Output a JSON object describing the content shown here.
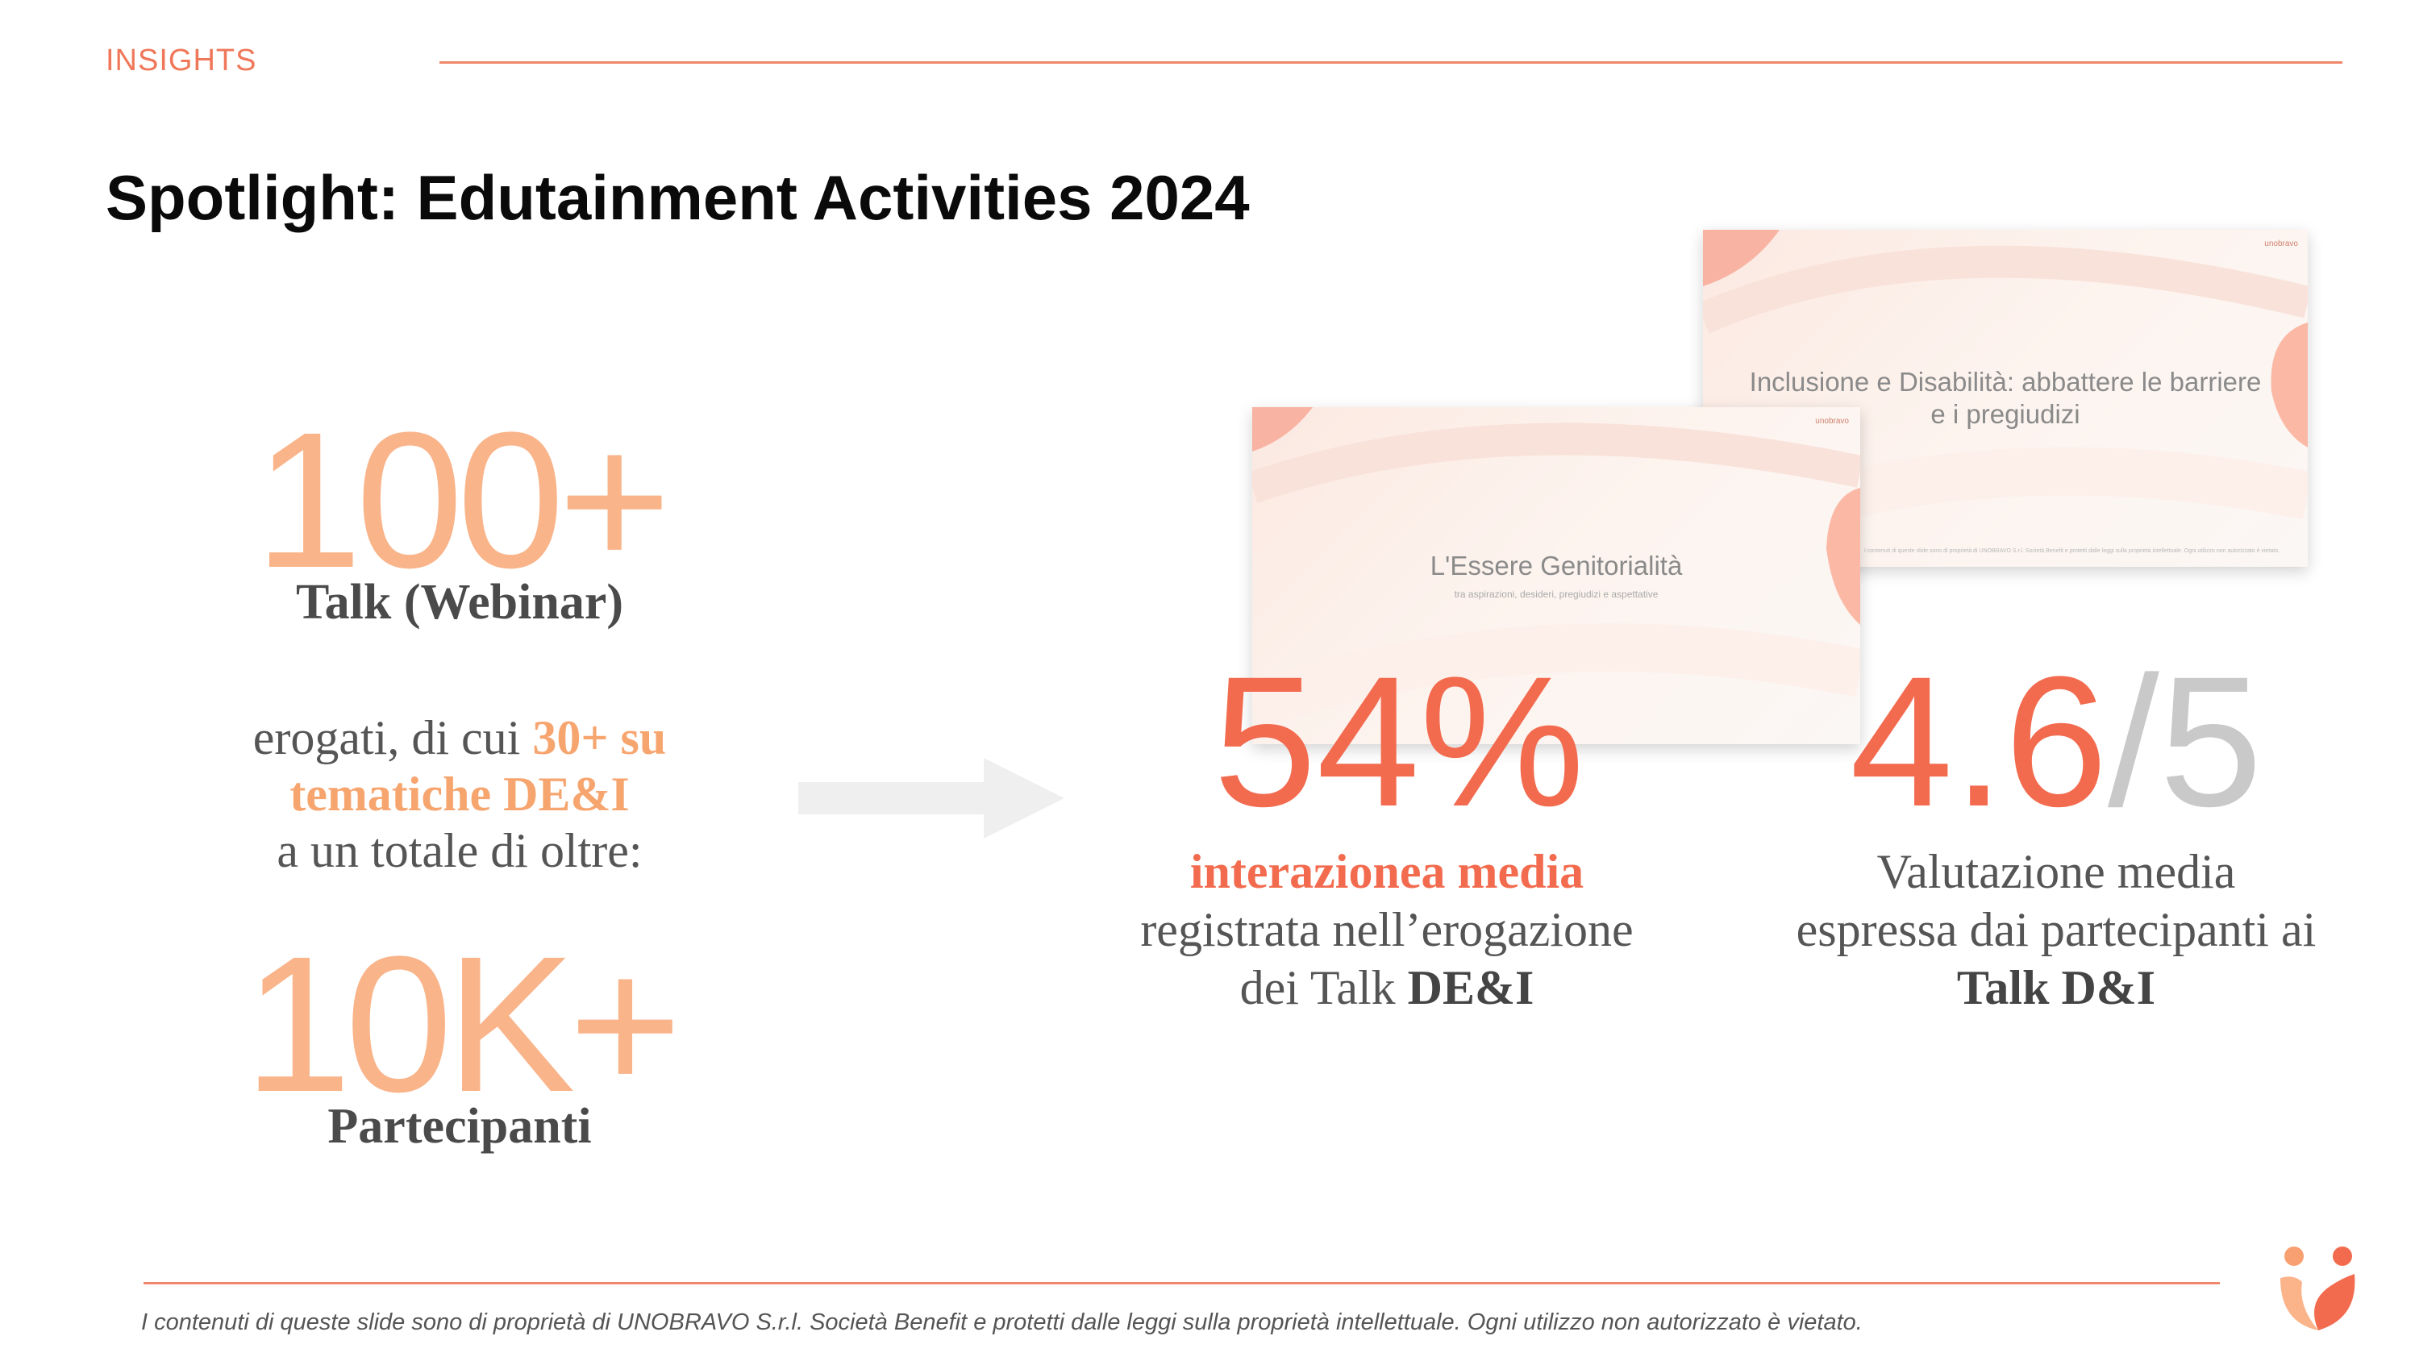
{
  "header": {
    "section": "INSIGHTS",
    "title": "Spotlight: Edutainment Activities 2024"
  },
  "left": {
    "talks_number": "100+",
    "talks_label": "Talk (Webinar)",
    "desc_line1_prefix": "erogati, di cui ",
    "desc_line1_highlight": "30+ su",
    "desc_line2_highlight": "tematiche DE&I",
    "desc_line3": "a un totale di oltre:",
    "participants_number": "10K+",
    "participants_label": "Partecipanti"
  },
  "slides": {
    "back": {
      "title_line1": "Inclusione e Disabilità: abbattere le barriere",
      "title_line2": "e i pregiudizi",
      "logo": "unobravo",
      "footer_text": "I contenuti di queste slide sono di proprietà di UNOBRAVO S.r.l. Società Benefit e protetti dalle leggi sulla proprietà intellettuale. Ogni utilizzo non autorizzato è vietato."
    },
    "front": {
      "title": "L'Essere Genitorialità",
      "subtitle": "tra aspirazioni, desideri, pregiudizi e aspettative",
      "logo": "unobravo"
    }
  },
  "stats": {
    "interaction": {
      "value": "54%",
      "line1": "interazionea media",
      "line2": "registrata nell’erogazione",
      "line3_prefix": "dei Talk ",
      "line3_bold": "DE&I"
    },
    "rating": {
      "value": "4.6",
      "scale": "/5",
      "line1": "Valutazione media",
      "line2": "espressa dai partecipanti ai",
      "line3": "Talk D&I"
    }
  },
  "footer": {
    "disclaimer": "I contenuti di queste slide sono di proprietà di UNOBRAVO S.r.l. Società Benefit e protetti dalle leggi sulla proprietà intellettuale. Ogni utilizzo non autorizzato è vietato."
  },
  "colors": {
    "accent": "#f36b4f",
    "peach": "#f9b48a",
    "line": "#f0866a"
  }
}
